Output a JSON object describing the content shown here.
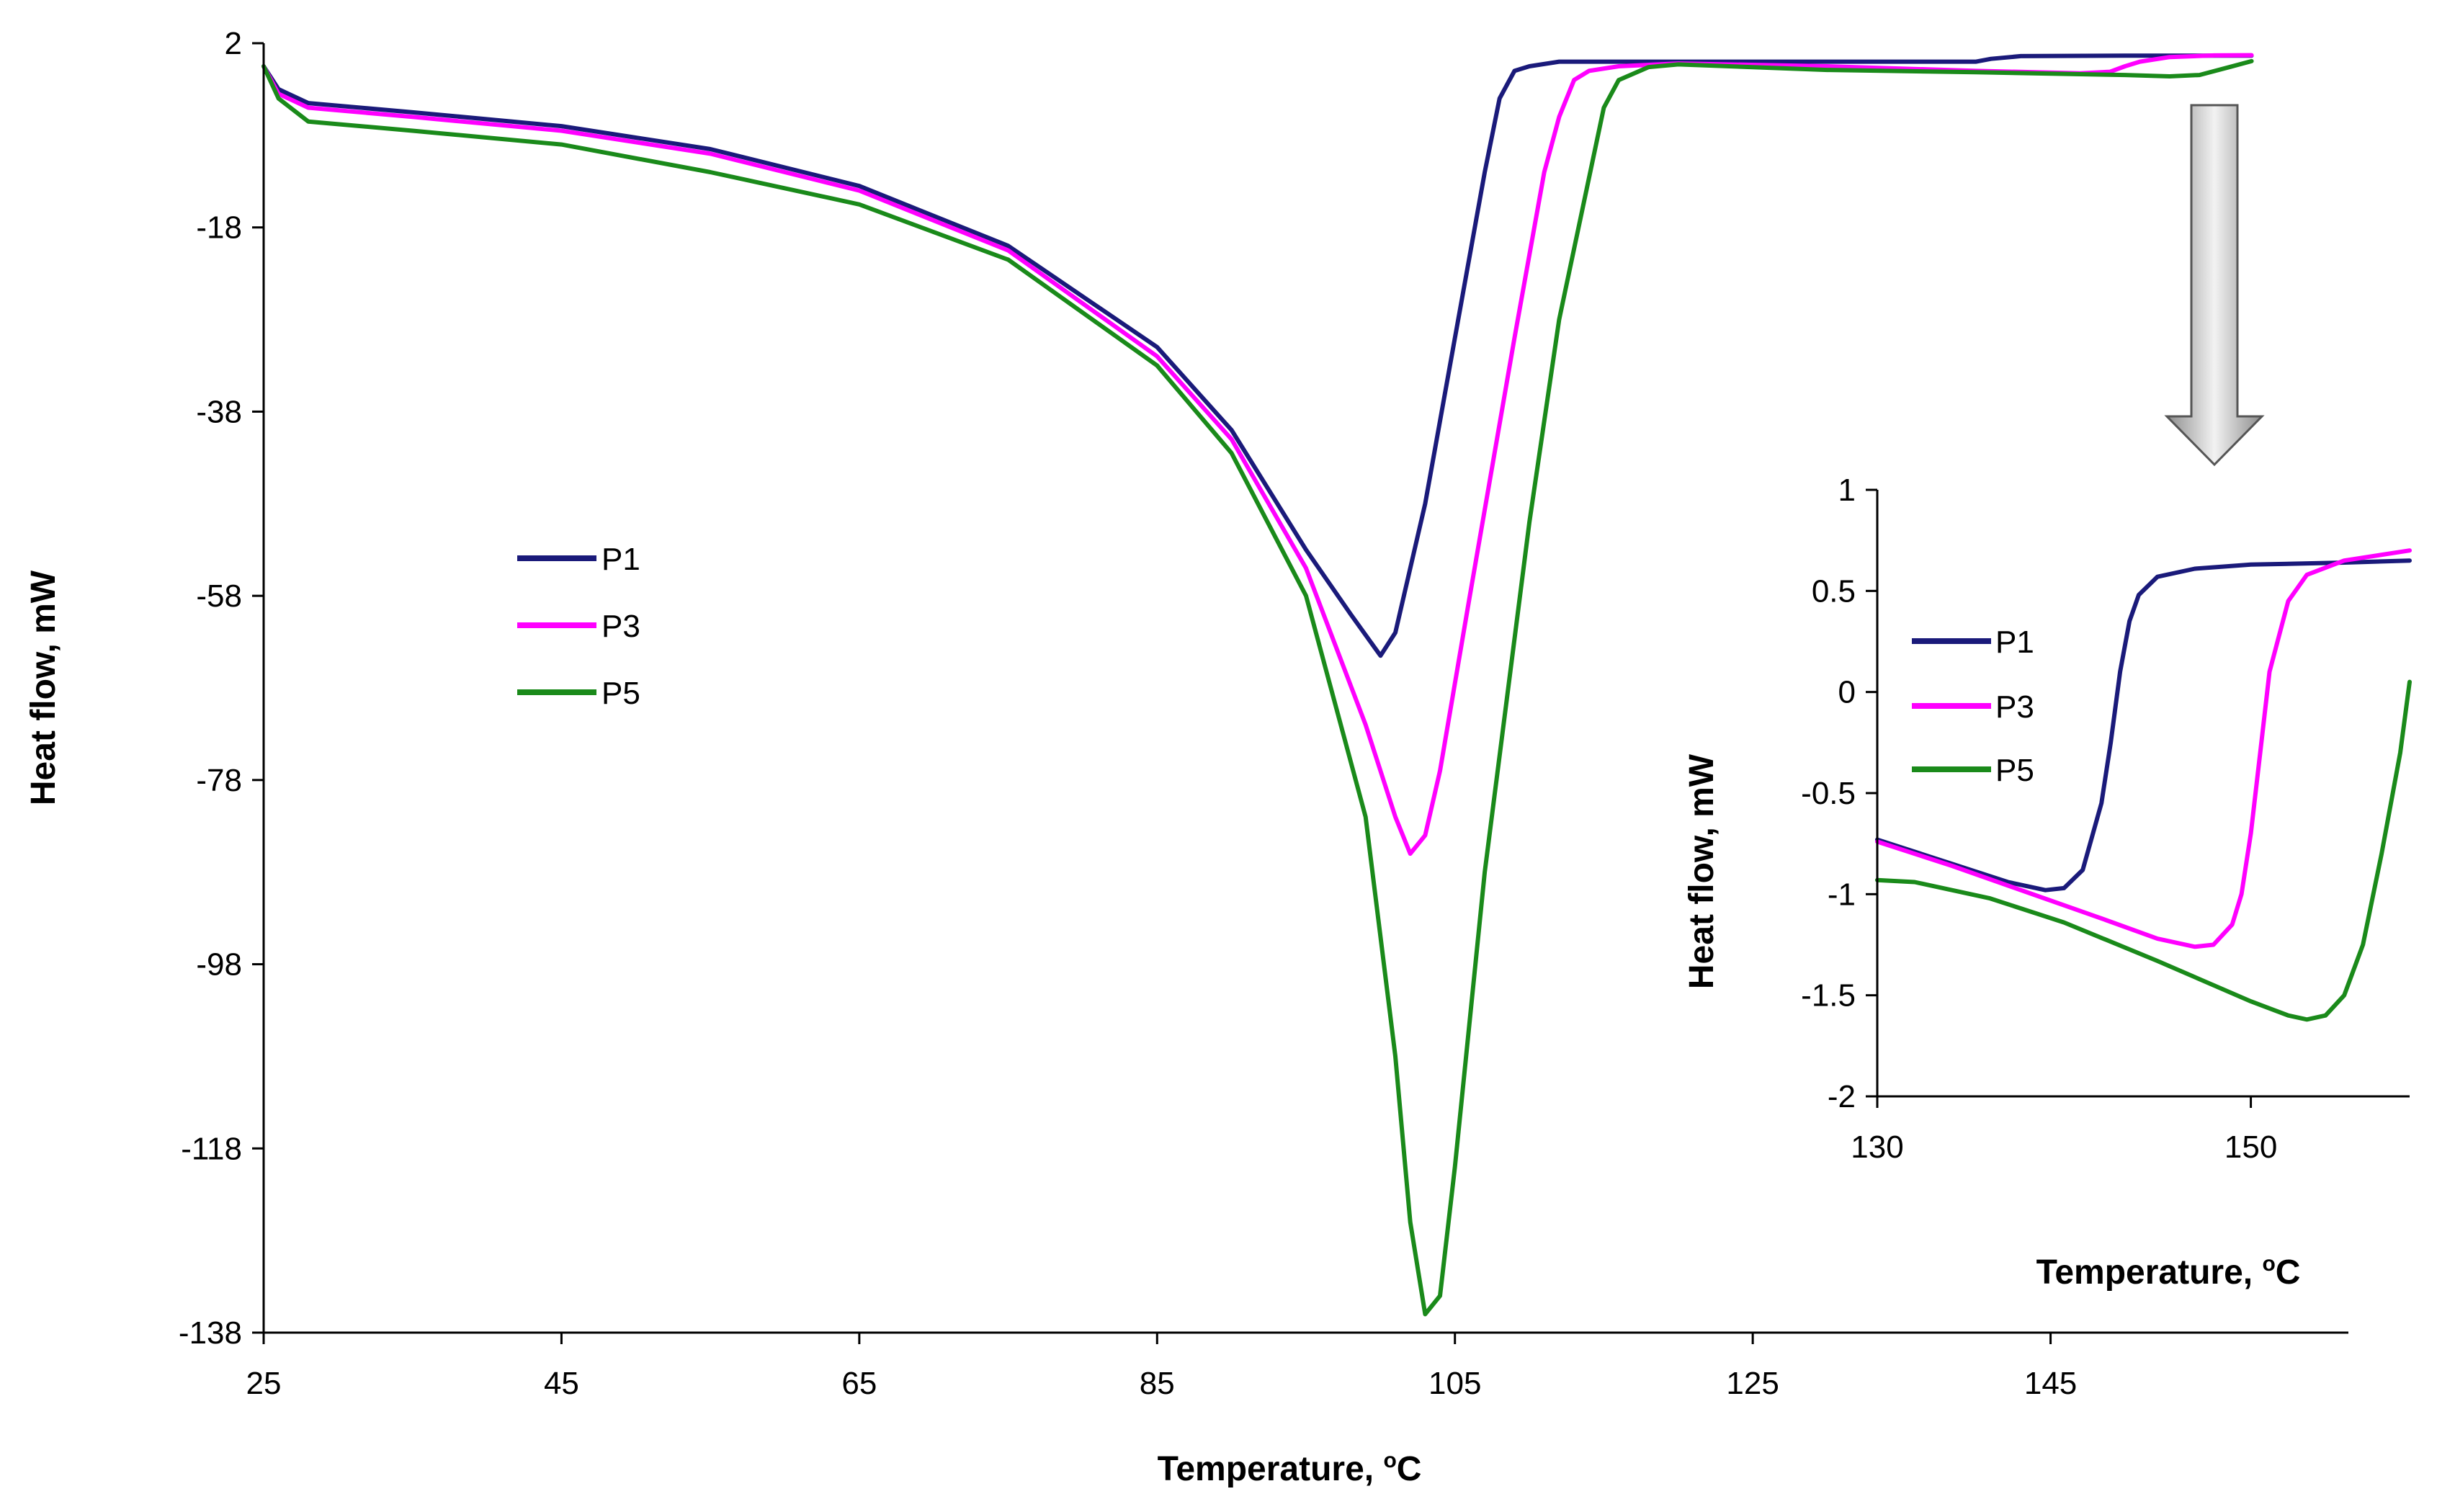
{
  "colors": {
    "P1": "#1a1a7a",
    "P3": "#ff00ff",
    "P5": "#1a8a1a",
    "arrow_fill": "#c0c0c0",
    "axis": "#000000"
  },
  "chart_data": [
    {
      "type": "line",
      "title": "",
      "xlabel": "Temperature, ",
      "xlabel_sup": "o",
      "xlabel_unit": "C",
      "ylabel": "Heat flow, mW",
      "xlim": [
        25,
        165
      ],
      "ylim": [
        -138,
        2
      ],
      "xticks": [
        "25",
        "45",
        "65",
        "85",
        "105",
        "125",
        "145"
      ],
      "yticks": [
        "2",
        "-18",
        "-38",
        "-58",
        "-78",
        "-98",
        "-118",
        "-138"
      ],
      "legend": [
        "P1",
        "P3",
        "P5"
      ],
      "series": [
        {
          "name": "P1",
          "color": "#1a1a7a",
          "x": [
            25,
            26,
            28,
            35,
            45,
            55,
            65,
            75,
            85,
            90,
            95,
            98,
            100,
            101,
            103,
            105,
            107,
            108,
            109,
            110,
            112,
            115,
            120,
            125,
            130,
            140,
            141,
            143,
            150,
            158,
            158.5
          ],
          "y": [
            -0.5,
            -3,
            -4.5,
            -5.5,
            -7,
            -9.5,
            -13.5,
            -20,
            -31,
            -40,
            -53,
            -60,
            -64.5,
            -62,
            -48,
            -30,
            -12,
            -4,
            -1,
            -0.5,
            0,
            0,
            0,
            0,
            0,
            0,
            0.3,
            0.6,
            0.65,
            0.65,
            0.65
          ]
        },
        {
          "name": "P3",
          "color": "#ff00ff",
          "x": [
            25,
            26,
            28,
            35,
            45,
            55,
            65,
            75,
            85,
            90,
            95,
            99,
            101,
            102,
            103,
            104,
            106,
            109,
            111,
            112,
            113,
            114,
            116,
            120,
            130,
            140,
            147,
            149,
            150,
            151,
            153,
            156,
            158.5
          ],
          "y": [
            -0.5,
            -3.5,
            -5,
            -6,
            -7.5,
            -10,
            -14,
            -20.5,
            -32,
            -41,
            -55,
            -72,
            -82,
            -86,
            -84,
            -77,
            -58,
            -30,
            -12,
            -6,
            -2,
            -1,
            -0.5,
            -0.2,
            -0.5,
            -1,
            -1.26,
            -1.1,
            -0.5,
            0,
            0.5,
            0.68,
            0.7
          ]
        },
        {
          "name": "P5",
          "color": "#1a8a1a",
          "x": [
            25,
            26,
            28,
            35,
            45,
            55,
            65,
            75,
            85,
            90,
            95,
            99,
            101,
            102,
            103,
            104,
            105,
            107,
            110,
            112,
            115,
            116,
            118,
            120,
            130,
            140,
            150,
            153,
            155,
            157,
            158.5
          ],
          "y": [
            -0.5,
            -4,
            -6.5,
            -7.5,
            -9,
            -12,
            -15.5,
            -21.5,
            -33,
            -42.5,
            -58,
            -82,
            -108,
            -126,
            -136,
            -134,
            -120,
            -88,
            -50,
            -28,
            -5,
            -2,
            -0.6,
            -0.3,
            -0.9,
            -1.15,
            -1.45,
            -1.6,
            -1.45,
            -0.6,
            0.05
          ]
        }
      ]
    },
    {
      "type": "line",
      "title": "",
      "xlabel": "Temperature, ",
      "xlabel_sup": "o",
      "xlabel_unit": "C",
      "ylabel": "Heat flow, mW",
      "xlim": [
        130,
        158.5
      ],
      "ylim": [
        -2,
        1
      ],
      "xticks": [
        "130",
        "150"
      ],
      "yticks": [
        "1",
        "0.5",
        "0",
        "-0.5",
        "-1",
        "-1.5",
        "-2"
      ],
      "legend": [
        "P1",
        "P3",
        "P5"
      ],
      "series": [
        {
          "name": "P1",
          "color": "#1a1a7a",
          "x": [
            130,
            134,
            137,
            139,
            140,
            141,
            142,
            142.5,
            143,
            143.5,
            144,
            145,
            147,
            150,
            155,
            158.5
          ],
          "y": [
            -0.73,
            -0.85,
            -0.94,
            -0.98,
            -0.97,
            -0.88,
            -0.55,
            -0.25,
            0.1,
            0.35,
            0.48,
            0.57,
            0.61,
            0.63,
            0.64,
            0.65
          ]
        },
        {
          "name": "P3",
          "color": "#ff00ff",
          "x": [
            130,
            134,
            138,
            142,
            145,
            147,
            148,
            149,
            149.5,
            150,
            150.5,
            151,
            152,
            153,
            155,
            158.5
          ],
          "y": [
            -0.74,
            -0.86,
            -0.99,
            -1.12,
            -1.22,
            -1.26,
            -1.25,
            -1.15,
            -1.0,
            -0.7,
            -0.3,
            0.1,
            0.45,
            0.58,
            0.65,
            0.7
          ]
        },
        {
          "name": "P5",
          "color": "#1a8a1a",
          "x": [
            130,
            132,
            136,
            140,
            145,
            150,
            152,
            153,
            154,
            155,
            156,
            157,
            158,
            158.5
          ],
          "y": [
            -0.93,
            -0.94,
            -1.02,
            -1.14,
            -1.33,
            -1.53,
            -1.6,
            -1.62,
            -1.6,
            -1.5,
            -1.25,
            -0.8,
            -0.3,
            0.05
          ]
        }
      ]
    }
  ]
}
